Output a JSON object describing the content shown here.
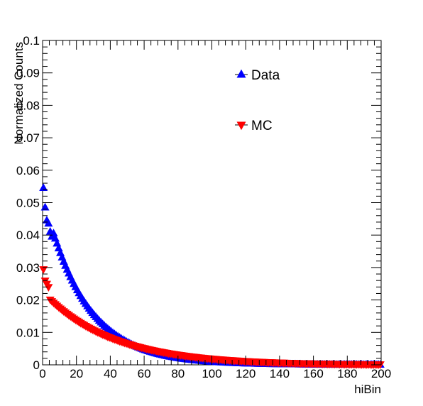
{
  "chart_data": {
    "type": "scatter",
    "xlabel": "hiBin",
    "ylabel": "Normalized Counts",
    "xlim": [
      0,
      200
    ],
    "ylim": [
      0,
      0.1
    ],
    "x_ticks": [
      "0",
      "20",
      "40",
      "60",
      "80",
      "100",
      "120",
      "140",
      "160",
      "180",
      "200"
    ],
    "y_ticks": [
      "0",
      "0.01",
      "0.02",
      "0.03",
      "0.04",
      "0.05",
      "0.06",
      "0.07",
      "0.08",
      "0.09",
      "0.1"
    ],
    "legend": {
      "placement": "top-right"
    },
    "series": [
      {
        "name": "Data",
        "color": "#0000ff",
        "marker": "triangle-up",
        "model": {
          "type": "exponential",
          "a": 0.0527,
          "b": 0.0405,
          "x_start": 0.5,
          "x_end": 199.5,
          "step": 1
        },
        "points": [
          [
            0.5,
            0.0545
          ],
          [
            1.5,
            0.0485
          ],
          [
            2.5,
            0.0445
          ],
          [
            3.5,
            0.0435
          ],
          [
            4.5,
            0.041
          ],
          [
            5.5,
            0.0395
          ]
        ]
      },
      {
        "name": "MC",
        "color": "#ff0000",
        "marker": "triangle-down",
        "model": {
          "type": "exponential",
          "a": 0.0225,
          "b": 0.0246,
          "x_start": 0.5,
          "x_end": 199.5,
          "step": 1
        },
        "points": [
          [
            0.5,
            0.0295
          ],
          [
            1.5,
            0.026
          ],
          [
            2.5,
            0.025
          ],
          [
            3.5,
            0.024
          ]
        ]
      }
    ]
  }
}
